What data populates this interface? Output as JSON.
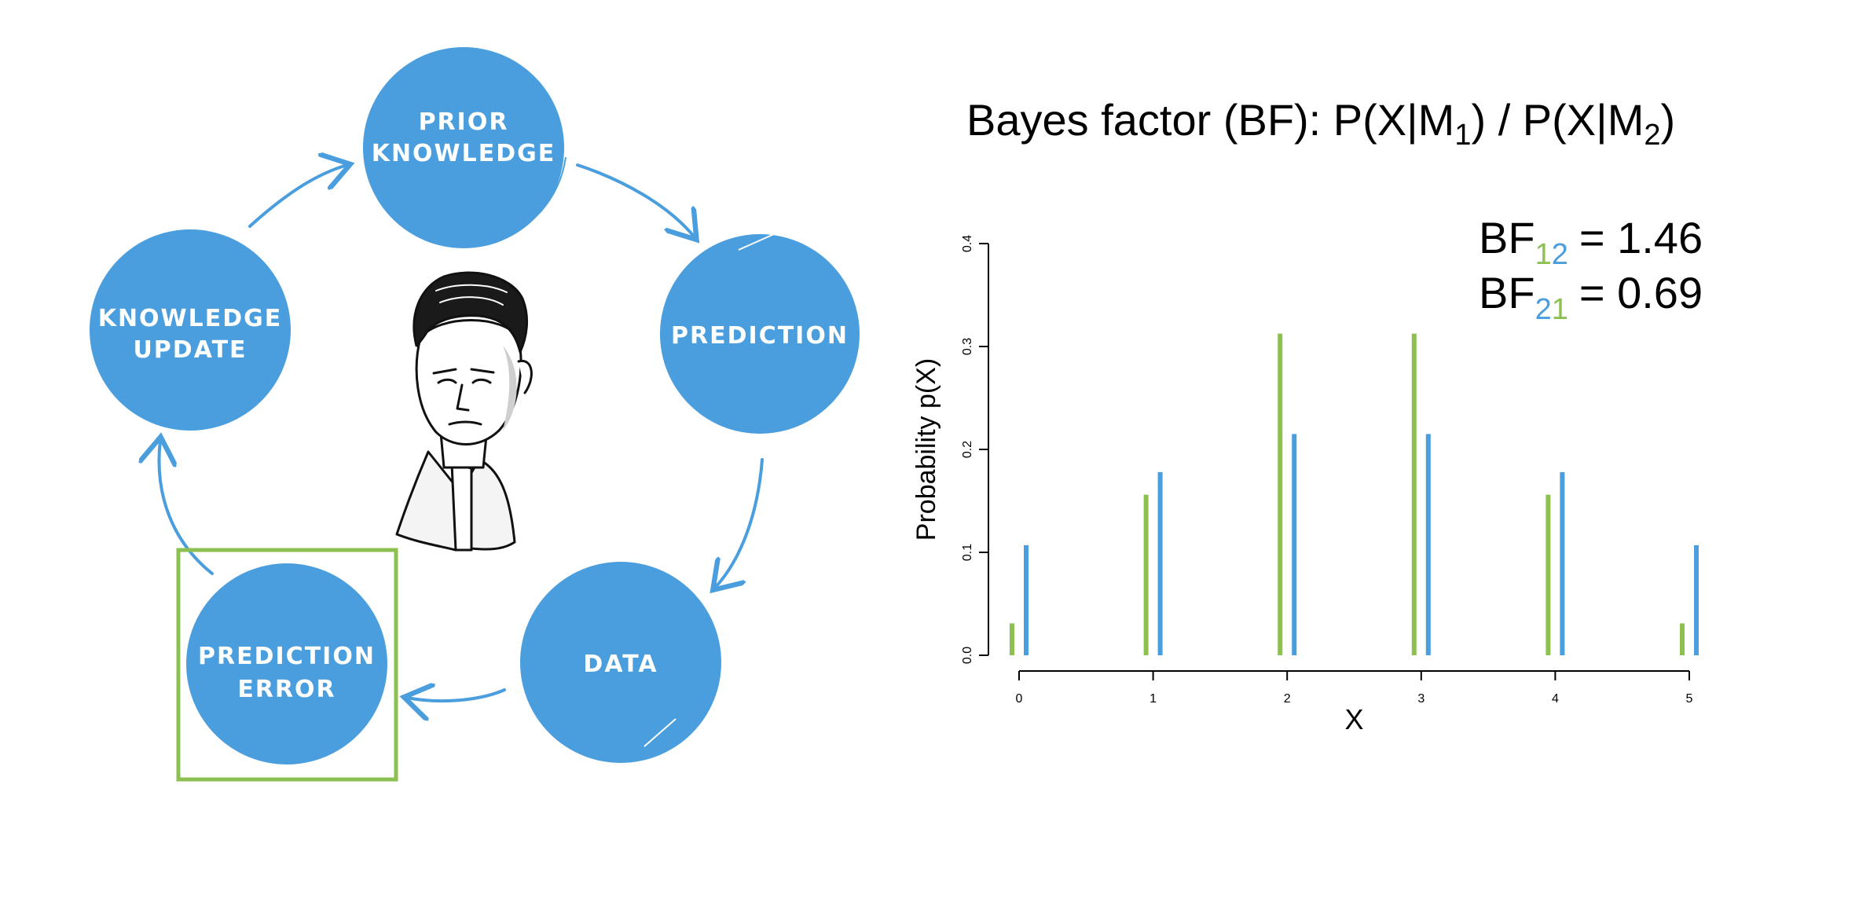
{
  "colors": {
    "circle_fill": "#4A9EDE",
    "arrow": "#4A9EDE",
    "highlight_box": "#8CC152",
    "series_m1": "#8CC152",
    "series_m2": "#4A9EDE"
  },
  "cycle": {
    "nodes": [
      {
        "id": "prior",
        "lines": [
          "PRIOR",
          "KNOWLEDGE"
        ]
      },
      {
        "id": "prediction",
        "lines": [
          "PREDICTION"
        ]
      },
      {
        "id": "data",
        "lines": [
          "DATA"
        ]
      },
      {
        "id": "error",
        "lines": [
          "PREDICTION",
          "ERROR"
        ],
        "highlighted": true
      },
      {
        "id": "update",
        "lines": [
          "KNOWLEDGE",
          "UPDATE"
        ]
      }
    ],
    "portrait_icon": "scientist-portrait-icon"
  },
  "formula": {
    "prefix": "Bayes factor (BF): P(X|M",
    "sub1": "1",
    "middle": ") / P(X|M",
    "sub2": "2",
    "suffix": ")"
  },
  "bf_values": [
    {
      "base": "BF",
      "sub_a": "1",
      "sub_b": "2",
      "value": "= 1.46"
    },
    {
      "base": "BF",
      "sub_a": "2",
      "sub_b": "1",
      "value": "= 0.69"
    }
  ],
  "chart_data": {
    "type": "bar",
    "xlabel": "X",
    "ylabel": "Probability p(X)",
    "categories": [
      "0",
      "1",
      "2",
      "3",
      "4",
      "5"
    ],
    "x_ticks": [
      "0",
      "1",
      "2",
      "3",
      "4",
      "5"
    ],
    "y_ticks": [
      "0.0",
      "0.1",
      "0.2",
      "0.3",
      "0.4"
    ],
    "ylim": [
      0,
      0.4
    ],
    "series": [
      {
        "values": [
          0.031,
          0.156,
          0.3125,
          0.3125,
          0.156,
          0.031
        ]
      },
      {
        "values": [
          0.107,
          0.178,
          0.215,
          0.215,
          0.178,
          0.107
        ]
      }
    ]
  }
}
